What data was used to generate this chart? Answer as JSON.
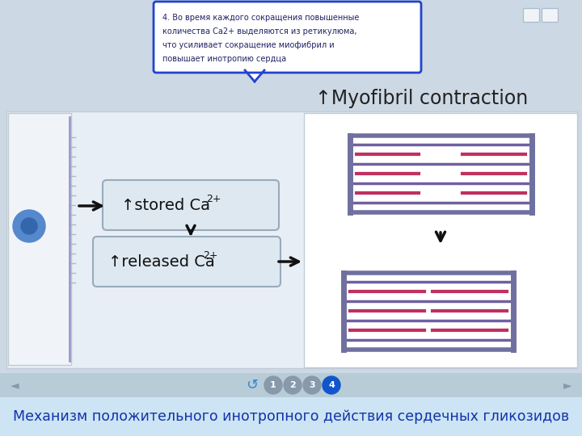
{
  "bg_color": "#ccd8e4",
  "tooltip_text_lines": [
    "4. Во время каждого сокращения повышенные",
    "количества Ca2+ выделяются из ретикулюма,",
    "что усиливает сокращение миофибрил и",
    "повышает инотропию сердца"
  ],
  "myofibril_title": "↑Myofibril contraction",
  "stored_ca_label": "↑stored Ca",
  "released_ca_label": "↑released Ca",
  "bottom_text": "Механизм положительного инотропного действия сердечных гликозидов",
  "tooltip_bg": "#ffffff",
  "tooltip_border": "#2244cc",
  "tooltip_text_color": "#222266",
  "box_bg": "#dde8f0",
  "box_border": "#99aabc",
  "main_content_bg": "#e8eef5",
  "main_content_border": "#c0ccd8",
  "left_panel_bg": "#f0f4f8",
  "left_panel_border": "#c0cccc",
  "right_panel_bg": "#ffffff",
  "right_panel_border": "#c0ccd8",
  "muscle_outer_color": "#7070a0",
  "muscle_red_line": "#c03060",
  "muscle_purple_line": "#7060a0",
  "arrow_color": "#111111",
  "myofibril_color": "#222222",
  "stored_color": "#111111",
  "nav_bg": "#b8ccd8",
  "bottom_bg": "#cce4f4",
  "nav_dot_active": "#1155cc",
  "nav_dot_inactive": "#8899aa",
  "nav_arrow_color": "#8899aa",
  "refresh_color": "#3388cc",
  "corner_icon_color": "#aabbcc",
  "superscript_color": "#111111"
}
